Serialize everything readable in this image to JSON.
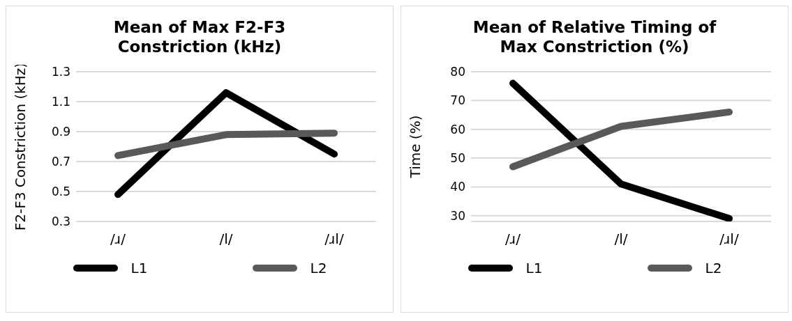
{
  "chart_data": [
    {
      "type": "line",
      "title": "Mean of Max F2-F3 Constriction (kHz)",
      "ylabel": "F2-F3 Constriction (kHz)",
      "categories": [
        "/ɹ/",
        "/l/",
        "/ɹl/"
      ],
      "series": [
        {
          "name": "L1",
          "color": "#000000",
          "values": [
            0.48,
            1.16,
            0.75
          ]
        },
        {
          "name": "L2",
          "color": "#595959",
          "values": [
            0.74,
            0.88,
            0.89
          ]
        }
      ],
      "ylim": [
        0.3,
        1.3
      ],
      "yticks": [
        0.3,
        0.5,
        0.7,
        0.9,
        1.1,
        1.3
      ],
      "grid": "y",
      "legend": "bottom",
      "marker": "none",
      "line_style": "solid"
    },
    {
      "type": "line",
      "title": "Mean of Relative Timing of Max Constriction (%)",
      "ylabel": "Time (%)",
      "categories": [
        "/ɹ/",
        "/l/",
        "/ɹl/"
      ],
      "series": [
        {
          "name": "L1",
          "color": "#000000",
          "values": [
            76,
            41,
            29
          ]
        },
        {
          "name": "L2",
          "color": "#595959",
          "values": [
            47,
            61,
            66
          ]
        }
      ],
      "ylim": [
        28,
        80
      ],
      "yticks": [
        30,
        40,
        50,
        60,
        70,
        80
      ],
      "grid": "y",
      "legend": "bottom",
      "marker": "none",
      "line_style": "solid"
    }
  ]
}
